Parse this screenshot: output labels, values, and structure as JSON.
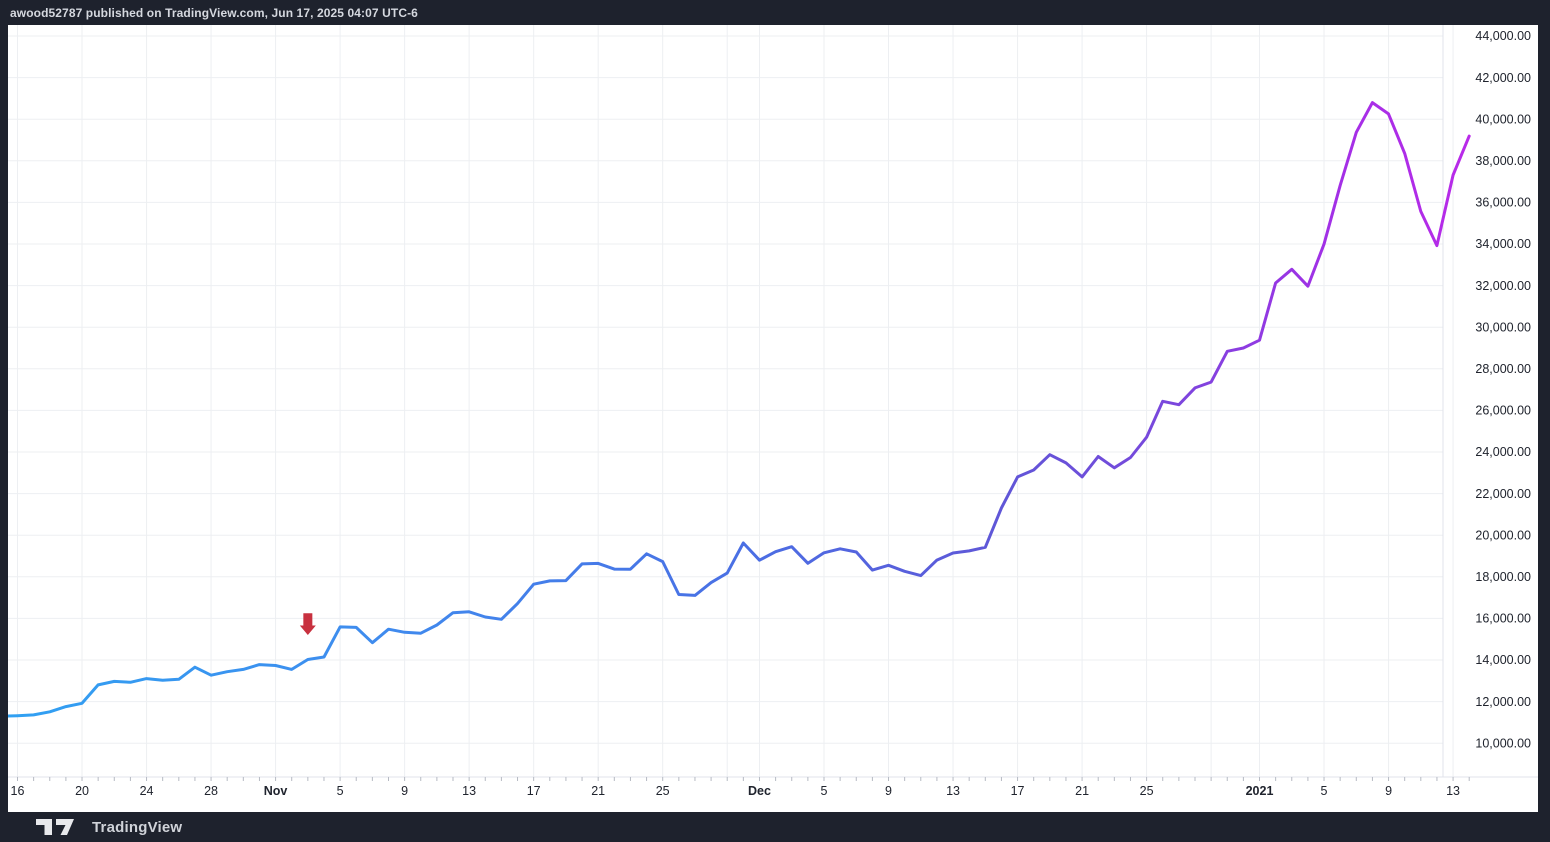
{
  "header": {
    "attribution": "awood52787 published on TradingView.com, Jun 17, 2025 04:07 UTC-6"
  },
  "footer": {
    "brand": "TradingView"
  },
  "chart_data": {
    "type": "line",
    "title": "",
    "xlabel": "",
    "ylabel": "",
    "x_start_date": "2020-10-15",
    "x_unit": "day",
    "first_point_day": -1,
    "ylim": [
      10000,
      44000
    ],
    "grid": {
      "color": "#edeff2",
      "sep_color": "#e0e3eb",
      "tick_color": "#b6bac3"
    },
    "axis_text_color": "#20242e",
    "line_width": 3,
    "line_gradient": [
      {
        "offset": 0,
        "color": "#31a0f2"
      },
      {
        "offset": 0.25,
        "color": "#3f8bee"
      },
      {
        "offset": 0.5,
        "color": "#4a6fe4"
      },
      {
        "offset": 0.68,
        "color": "#6056d7"
      },
      {
        "offset": 0.8,
        "color": "#7c46dd"
      },
      {
        "offset": 0.9,
        "color": "#a130e6"
      },
      {
        "offset": 1,
        "color": "#b92ae9"
      }
    ],
    "series": [
      {
        "name": "price",
        "values": [
          11296,
          11322,
          11360,
          11508,
          11758,
          11916,
          12803,
          12973,
          12926,
          13108,
          13031,
          13070,
          13654,
          13271,
          13437,
          13546,
          13781,
          13737,
          13550,
          14023,
          14144,
          15590,
          15565,
          14833,
          15479,
          15332,
          15290,
          15684,
          16276,
          16317,
          16068,
          15955,
          16713,
          17645,
          17804,
          17817,
          18621,
          18642,
          18370,
          18365,
          19107,
          18732,
          17151,
          17108,
          17719,
          18178,
          19625,
          18800,
          19205,
          19446,
          18650,
          19154,
          19345,
          19191,
          18321,
          18553,
          18264,
          18058,
          18803,
          19144,
          19246,
          19417,
          21310,
          22805,
          23137,
          23869,
          23477,
          22803,
          23783,
          23241,
          23735,
          24712,
          26437,
          26272,
          27084,
          27362,
          28841,
          29002,
          29374,
          32127,
          32782,
          31971,
          33992,
          36824,
          39371,
          40797,
          40254,
          38356,
          35566,
          33922,
          37316,
          39187
        ]
      }
    ],
    "y_ticks": [
      {
        "value": 44000,
        "label": "44,000.00"
      },
      {
        "value": 42000,
        "label": "42,000.00"
      },
      {
        "value": 40000,
        "label": "40,000.00"
      },
      {
        "value": 38000,
        "label": "38,000.00"
      },
      {
        "value": 36000,
        "label": "36,000.00"
      },
      {
        "value": 34000,
        "label": "34,000.00"
      },
      {
        "value": 32000,
        "label": "32,000.00"
      },
      {
        "value": 30000,
        "label": "30,000.00"
      },
      {
        "value": 28000,
        "label": "28,000.00"
      },
      {
        "value": 26000,
        "label": "26,000.00"
      },
      {
        "value": 24000,
        "label": "24,000.00"
      },
      {
        "value": 22000,
        "label": "22,000.00"
      },
      {
        "value": 20000,
        "label": "20,000.00"
      },
      {
        "value": 18000,
        "label": "18,000.00"
      },
      {
        "value": 16000,
        "label": "16,000.00"
      },
      {
        "value": 14000,
        "label": "14,000.00"
      },
      {
        "value": 12000,
        "label": "12,000.00"
      },
      {
        "value": 10000,
        "label": "10,000.00"
      }
    ],
    "x_ticks": [
      {
        "label": "16",
        "day": 0,
        "bold": false
      },
      {
        "label": "20",
        "day": 4,
        "bold": false
      },
      {
        "label": "24",
        "day": 8,
        "bold": false
      },
      {
        "label": "28",
        "day": 12,
        "bold": false
      },
      {
        "label": "Nov",
        "day": 16,
        "bold": true
      },
      {
        "label": "5",
        "day": 20,
        "bold": false
      },
      {
        "label": "9",
        "day": 24,
        "bold": false
      },
      {
        "label": "13",
        "day": 28,
        "bold": false
      },
      {
        "label": "17",
        "day": 32,
        "bold": false
      },
      {
        "label": "21",
        "day": 36,
        "bold": false
      },
      {
        "label": "25",
        "day": 40,
        "bold": false
      },
      {
        "label": "",
        "day": 44,
        "bold": false
      },
      {
        "label": "Dec",
        "day": 46,
        "bold": true
      },
      {
        "label": "5",
        "day": 50,
        "bold": false
      },
      {
        "label": "9",
        "day": 54,
        "bold": false
      },
      {
        "label": "13",
        "day": 58,
        "bold": false
      },
      {
        "label": "17",
        "day": 62,
        "bold": false
      },
      {
        "label": "21",
        "day": 66,
        "bold": false
      },
      {
        "label": "25",
        "day": 70,
        "bold": false
      },
      {
        "label": "",
        "day": 74,
        "bold": false
      },
      {
        "label": "2021",
        "day": 77,
        "bold": true
      },
      {
        "label": "5",
        "day": 81,
        "bold": false
      },
      {
        "label": "9",
        "day": 85,
        "bold": false
      },
      {
        "label": "13",
        "day": 89,
        "bold": false
      }
    ],
    "marker": {
      "shape": "arrow-down",
      "color": "#c8313f",
      "day": 18,
      "value_top": 16250,
      "value_tip": 15200,
      "head_width": 16,
      "shaft_width": 9
    }
  }
}
